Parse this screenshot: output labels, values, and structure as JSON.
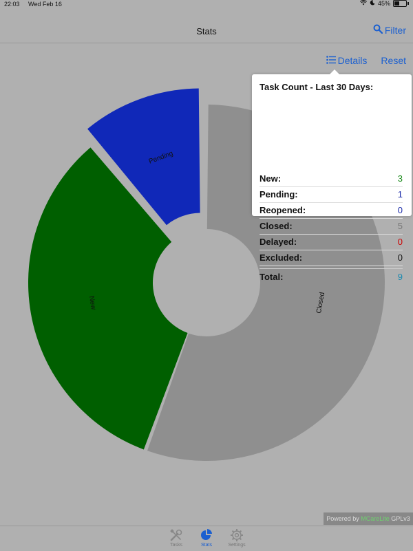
{
  "status_bar": {
    "time": "22:03",
    "date": "Wed Feb 16",
    "battery": "45%"
  },
  "nav": {
    "title": "Stats",
    "filter_label": "Filter"
  },
  "toolbar": {
    "details_label": "Details",
    "reset_label": "Reset"
  },
  "popover": {
    "title": "Task Count - Last 30 Days:",
    "rows": [
      {
        "label": "New:",
        "value": "3",
        "color": "#1a8a1a"
      },
      {
        "label": "Pending:",
        "value": "1",
        "color": "#1a2aa8"
      },
      {
        "label": "Reopened:",
        "value": "0",
        "color": "#1a2aa8"
      },
      {
        "label": "Closed:",
        "value": "5",
        "color": "#777777"
      },
      {
        "label": "Delayed:",
        "value": "0",
        "color": "#cc0000"
      },
      {
        "label": "Excluded:",
        "value": "0",
        "color": "#111111"
      }
    ],
    "total": {
      "label": "Total:",
      "value": "9",
      "color": "#1a8ab0"
    }
  },
  "chart_data": {
    "type": "pie",
    "categories": [
      "Closed",
      "New",
      "Pending"
    ],
    "values": [
      5,
      3,
      1
    ],
    "colors": [
      "#8f8f8f",
      "#005f00",
      "#1028b8"
    ],
    "exploded": [
      false,
      false,
      true
    ],
    "donut": true
  },
  "footer": {
    "powered_prefix": "Powered by ",
    "app_name": "MCareLite",
    "license": " GPLv3"
  },
  "tabs": [
    {
      "label": "Tasks",
      "icon": "tools-icon",
      "active": false
    },
    {
      "label": "Stats",
      "icon": "pie-chart-icon",
      "active": true
    },
    {
      "label": "Settings",
      "icon": "gear-icon",
      "active": false
    }
  ]
}
